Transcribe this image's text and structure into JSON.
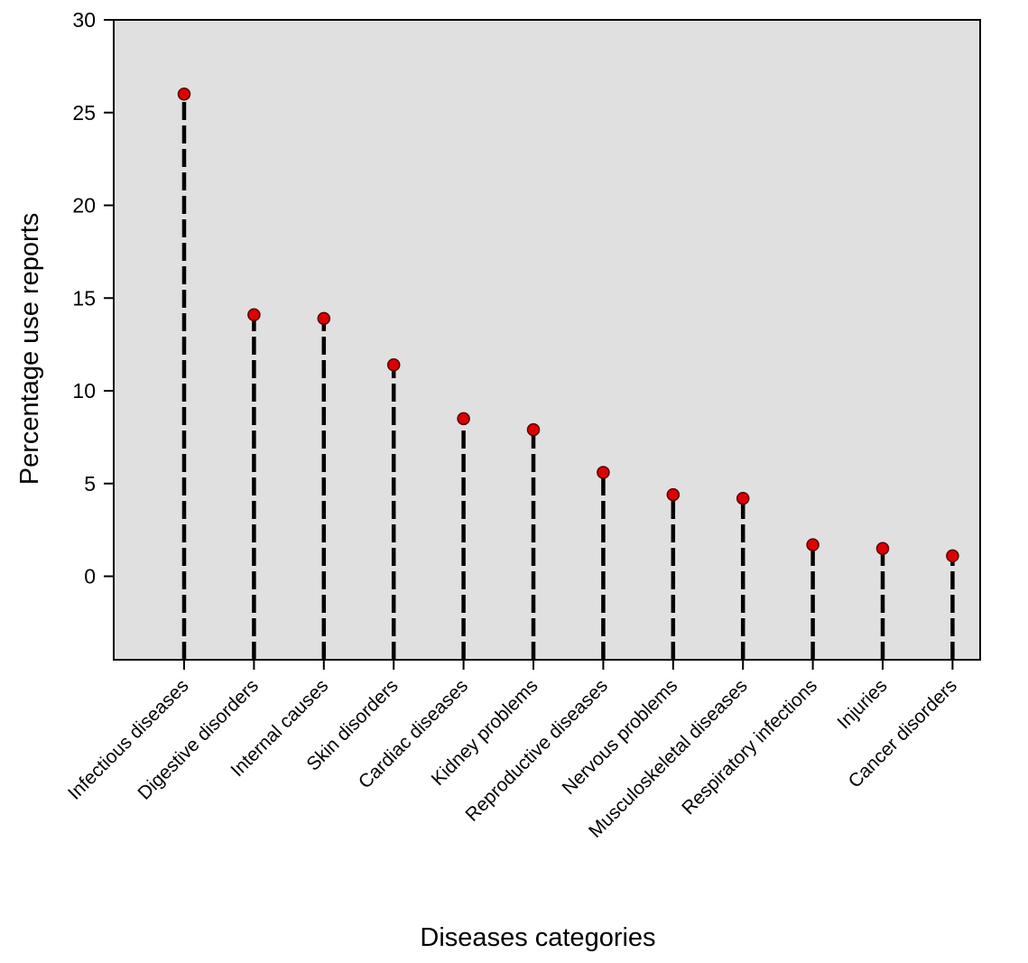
{
  "chart_data": {
    "type": "scatter",
    "title": "",
    "xlabel": "Diseases categories",
    "ylabel": "Percentage use reports",
    "ylim": [
      -4.5,
      30
    ],
    "yticks": [
      0,
      5,
      10,
      15,
      20,
      25,
      30
    ],
    "grid": false,
    "legend": "none",
    "marker_style": "red filled circle with dashed black drop line",
    "categories": [
      "Infectious diseases",
      "Digestive disorders",
      "Internal causes",
      "Skin disorders",
      "Cardiac diseases",
      "Kidney problems",
      "Reproductive diseases",
      "Nervous problems",
      "Musculoskeletal diseases",
      "Respiratory  infections",
      "Injuries",
      "Cancer disorders"
    ],
    "values": [
      26.0,
      14.1,
      13.9,
      11.4,
      8.5,
      7.9,
      5.6,
      4.4,
      4.2,
      1.7,
      1.5,
      1.1
    ],
    "colors": {
      "plot_background": "#e0e0e0",
      "marker_fill": "#dd0000",
      "marker_edge": "#550000",
      "drop_line": "#000000",
      "axis": "#000000"
    }
  }
}
